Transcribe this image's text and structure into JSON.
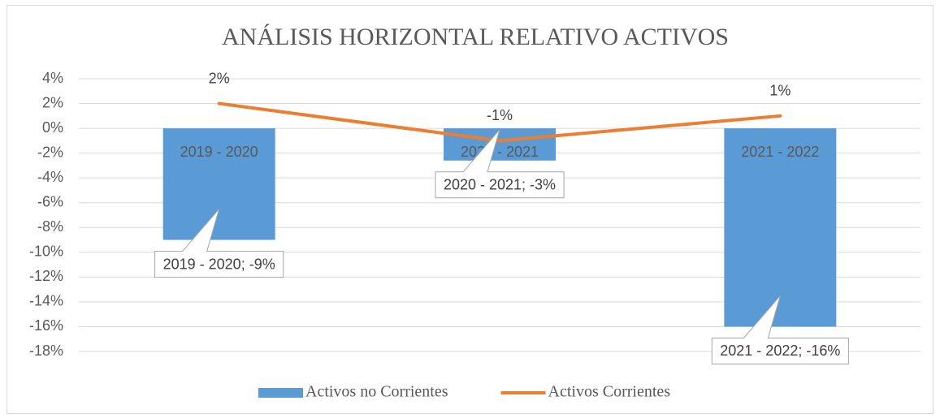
{
  "chart_data": {
    "type": "bar-line",
    "title": "ANÁLISIS HORIZONTAL RELATIVO ACTIVOS",
    "categories": [
      "2019 - 2020",
      "2020 - 2021",
      "2021 - 2022"
    ],
    "series": [
      {
        "name": "Activos no Corrientes",
        "type": "bar",
        "color": "#5b9bd5",
        "values": [
          -9,
          -2.6,
          -16
        ],
        "value_labels": [
          "2019 - 2020; -9%",
          "2020 - 2021; -3%",
          "2021 - 2022; -16%"
        ]
      },
      {
        "name": "Activos Corrientes",
        "type": "line",
        "color": "#ed7d31",
        "values": [
          2,
          -1,
          1
        ],
        "value_labels": [
          "2%",
          "-1%",
          "1%"
        ]
      }
    ],
    "ylim": [
      -18,
      4
    ],
    "yticks": [
      {
        "value": 4,
        "label": "4%"
      },
      {
        "value": 2,
        "label": "2%"
      },
      {
        "value": 0,
        "label": "0%"
      },
      {
        "value": -2,
        "label": "-2%"
      },
      {
        "value": -4,
        "label": "-4%"
      },
      {
        "value": -6,
        "label": "-6%"
      },
      {
        "value": -8,
        "label": "-8%"
      },
      {
        "value": -10,
        "label": "-10%"
      },
      {
        "value": -12,
        "label": "-12%"
      },
      {
        "value": -14,
        "label": "-14%"
      },
      {
        "value": -16,
        "label": "-16%"
      },
      {
        "value": -18,
        "label": "-18%"
      }
    ],
    "grid": true,
    "legend": "bottom"
  }
}
